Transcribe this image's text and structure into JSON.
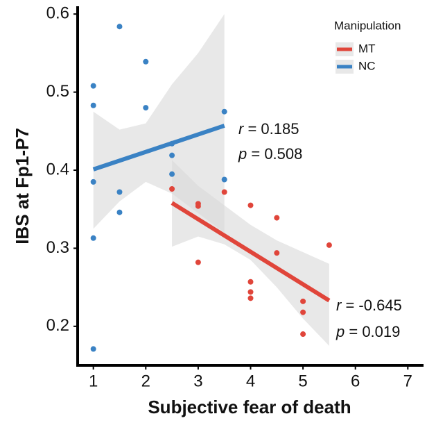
{
  "chart_data": {
    "type": "scatter",
    "x_label": "Subjective fear of death",
    "y_label": "IBS at Fp1-P7",
    "xlim": [
      0.7,
      7.3
    ],
    "xticks": [
      1,
      2,
      3,
      4,
      5,
      6,
      7
    ],
    "ylim": [
      0.15,
      0.61
    ],
    "yticks": [
      0.2,
      0.3,
      0.4,
      0.5,
      0.6
    ],
    "legend_title": "Manipulation",
    "legend_position": "upper right",
    "band_color": "#d9d9d9",
    "series": [
      {
        "name": "MT",
        "color": "#e0453a",
        "x": [
          2.5,
          3,
          3,
          3,
          3.5,
          4,
          4,
          4,
          4,
          4.5,
          4.5,
          5,
          5,
          5,
          5.5
        ],
        "values": [
          0.376,
          0.357,
          0.354,
          0.282,
          0.372,
          0.355,
          0.257,
          0.244,
          0.236,
          0.339,
          0.294,
          0.232,
          0.218,
          0.19,
          0.304
        ],
        "fit": {
          "x": [
            2.5,
            5.5
          ],
          "values": [
            0.358,
            0.233
          ]
        },
        "band": {
          "x": [
            2.5,
            3,
            3.5,
            4,
            4.5,
            5,
            5.5
          ],
          "upper": [
            0.413,
            0.38,
            0.355,
            0.33,
            0.31,
            0.295,
            0.28
          ],
          "lower": [
            0.302,
            0.315,
            0.305,
            0.285,
            0.25,
            0.21,
            0.175
          ]
        },
        "annotation": {
          "symbol_r": "r",
          "text_r": " = -0.645",
          "symbol_p": "p",
          "text_p": " = 0.019"
        }
      },
      {
        "name": "NC",
        "color": "#3a82c4",
        "x": [
          1,
          1,
          1,
          1,
          1,
          1.5,
          1.5,
          1.5,
          2,
          2,
          2.5,
          2.5,
          2.5,
          3.5,
          3.5
        ],
        "values": [
          0.508,
          0.483,
          0.385,
          0.313,
          0.171,
          0.584,
          0.372,
          0.346,
          0.539,
          0.48,
          0.434,
          0.419,
          0.395,
          0.475,
          0.388
        ],
        "fit": {
          "x": [
            1,
            3.5
          ],
          "values": [
            0.401,
            0.457
          ]
        },
        "band": {
          "x": [
            1,
            1.5,
            2,
            2.5,
            3,
            3.5
          ],
          "upper": [
            0.475,
            0.452,
            0.46,
            0.51,
            0.55,
            0.6
          ],
          "lower": [
            0.325,
            0.36,
            0.385,
            0.37,
            0.345,
            0.32
          ]
        },
        "annotation": {
          "symbol_r": "r",
          "text_r": " = 0.185",
          "symbol_p": "p",
          "text_p": " = 0.508"
        }
      }
    ]
  }
}
